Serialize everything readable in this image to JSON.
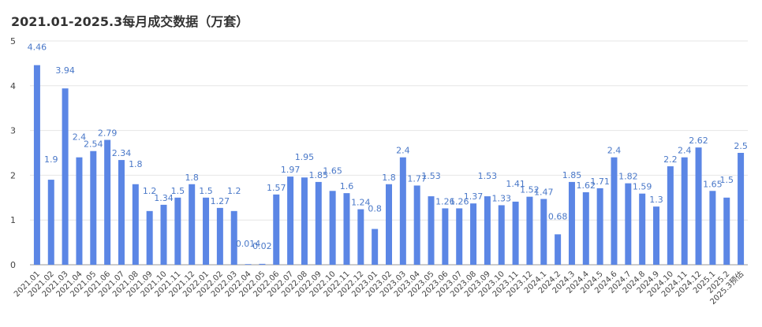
{
  "colors": {
    "bar": "#5b86e5",
    "label": "#4a78c8",
    "grid": "#e6e6e6"
  },
  "chart_data": {
    "type": "bar",
    "title": "2021.01-2025.3每月成交数据（万套）",
    "xlabel": "",
    "ylabel": "",
    "ylim": [
      0,
      5
    ],
    "yticks": [
      0,
      1,
      2,
      3,
      4,
      5
    ],
    "grid": true,
    "categories": [
      "2021.01",
      "2021.02",
      "2021.03",
      "2021.04",
      "2021.05",
      "2021.06",
      "2021.07",
      "2021.08",
      "2021.09",
      "2021.10",
      "2021.11",
      "2021.12",
      "2022.01",
      "2022.02",
      "2022.03",
      "2022.04",
      "2022.05",
      "2022.06",
      "2022.07",
      "2022.08",
      "2022.09",
      "2022.10",
      "2022.11",
      "2022.12",
      "2023.01",
      "2023.02",
      "2023.03",
      "2023.04",
      "2023.05",
      "2023.06",
      "2023.07",
      "2023.08",
      "2023.09",
      "2023.10",
      "2023.11",
      "2023.12",
      "2024.1",
      "2024.2",
      "2024.3",
      "2024.4",
      "2024.5",
      "2024.6",
      "2024.7",
      "2024.8",
      "2024.9",
      "2024.10",
      "2024.11",
      "2024.12",
      "2025.1",
      "2025.2",
      "2025.3预估"
    ],
    "values": [
      4.46,
      1.9,
      3.94,
      2.4,
      2.54,
      2.79,
      2.34,
      1.8,
      1.2,
      1.34,
      1.5,
      1.8,
      1.5,
      1.27,
      1.2,
      0.014,
      0.02,
      1.57,
      1.97,
      1.95,
      1.85,
      1.65,
      1.6,
      1.24,
      0.8,
      1.8,
      2.4,
      1.77,
      1.53,
      1.26,
      1.26,
      1.37,
      1.53,
      1.33,
      1.41,
      1.52,
      1.47,
      0.68,
      1.85,
      1.62,
      1.71,
      2.4,
      1.82,
      1.59,
      1.3,
      2.2,
      2.4,
      2.62,
      1.65,
      1.5,
      2.5
    ],
    "data_labels": [
      "4.46",
      "1.9",
      "3.94",
      "2.4",
      "2.54",
      "2.79",
      "2.34",
      "1.8",
      "1.2",
      "1.34",
      "1.5",
      "1.8",
      "1.5",
      "1.27",
      "1.2",
      "0.014",
      "0.02",
      "1.57",
      "1.97",
      "1.95",
      "1.85",
      "1.65",
      "1.6",
      "1.24",
      "0.8",
      "1.8",
      "2.4",
      "1.77",
      "1.53",
      "1.26",
      "1.26",
      "1.37",
      "1.53",
      "1.33",
      "1.41",
      "1.52",
      "1.47",
      "0.68",
      "1.85",
      "1.62",
      "1.71",
      "2.4",
      "1.82",
      "1.59",
      "1.3",
      "2.2",
      "2.4",
      "2.62",
      "1.65",
      "1.5",
      "2.5"
    ],
    "label_on_top": [
      true,
      false,
      true,
      false,
      true,
      true,
      true,
      false,
      false,
      true,
      true,
      true,
      true,
      true,
      false,
      false,
      true,
      true,
      true,
      false,
      true,
      false,
      true,
      true,
      false,
      true,
      true,
      true,
      false,
      true,
      true,
      true,
      false,
      true,
      true,
      true,
      true,
      true,
      true,
      true,
      true,
      true,
      true,
      true,
      true,
      true,
      true,
      true,
      true,
      true,
      true
    ],
    "label_gap_above": [
      true,
      false,
      true,
      false,
      false,
      false,
      false,
      false,
      true,
      false,
      false,
      false,
      false,
      false,
      true,
      false,
      true,
      false,
      false,
      true,
      false,
      true,
      false,
      false,
      true,
      false,
      false,
      false,
      false,
      false,
      false,
      false,
      true,
      false,
      true,
      false,
      false,
      true,
      false,
      false,
      false,
      false,
      false,
      false,
      false,
      false,
      false,
      false,
      false,
      true,
      false
    ]
  }
}
